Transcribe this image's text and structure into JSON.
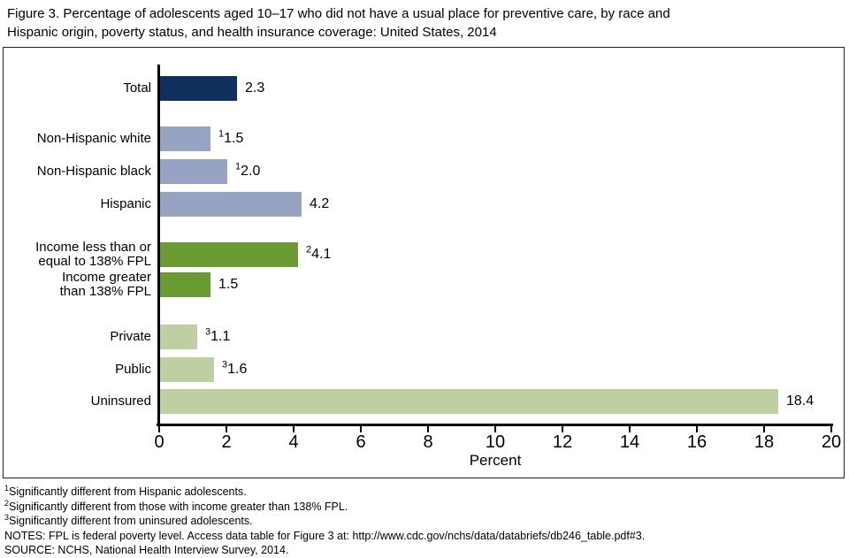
{
  "title": {
    "line1": "Figure 3. Percentage of adolescents aged 10–17 who did not have a usual place for preventive care, by race and",
    "line2": "Hispanic origin, poverty status, and health insurance coverage: United States, 2014"
  },
  "chart_data": {
    "type": "bar",
    "orientation": "horizontal",
    "title": "Figure 3. Percentage of adolescents aged 10–17 who did not have a usual place for preventive care, by race and Hispanic origin, poverty status, and health insurance coverage: United States, 2014",
    "xlabel": "Percent",
    "xlim": [
      0,
      20
    ],
    "xticks": [
      0,
      2,
      4,
      6,
      8,
      10,
      12,
      14,
      16,
      18,
      20
    ],
    "grid": false,
    "legend": "none",
    "colors": {
      "total": "#11305e",
      "race": "#97a3c3",
      "poverty": "#6a9b33",
      "insurance": "#bed0a1"
    },
    "bars": [
      {
        "label": "Total",
        "value": 2.3,
        "display": "2.3",
        "superscript": "",
        "group": "total"
      },
      {
        "label": "Non-Hispanic white",
        "value": 1.5,
        "display": "1.5",
        "superscript": "1",
        "group": "race"
      },
      {
        "label": "Non-Hispanic black",
        "value": 2.0,
        "display": "2.0",
        "superscript": "1",
        "group": "race"
      },
      {
        "label": "Hispanic",
        "value": 4.2,
        "display": "4.2",
        "superscript": "",
        "group": "race"
      },
      {
        "label": "Income less than or\nequal to 138% FPL",
        "value": 4.1,
        "display": "4.1",
        "superscript": "2",
        "group": "poverty"
      },
      {
        "label": "Income greater\nthan 138% FPL",
        "value": 1.5,
        "display": "1.5",
        "superscript": "",
        "group": "poverty"
      },
      {
        "label": "Private",
        "value": 1.1,
        "display": "1.1",
        "superscript": "3",
        "group": "insurance"
      },
      {
        "label": "Public",
        "value": 1.6,
        "display": "1.6",
        "superscript": "3",
        "group": "insurance"
      },
      {
        "label": "Uninsured",
        "value": 18.4,
        "display": "18.4",
        "superscript": "",
        "group": "insurance"
      }
    ]
  },
  "footnotes": [
    {
      "sup": "1",
      "text": "Significantly different from Hispanic adolescents."
    },
    {
      "sup": "2",
      "text": "Significantly different from those with income greater than 138% FPL."
    },
    {
      "sup": "3",
      "text": "Significantly different from uninsured adolescents."
    },
    {
      "sup": "",
      "text": "NOTES: FPL is federal poverty level. Access data table for Figure 3 at: http://www.cdc.gov/nchs/data/databriefs/db246_table.pdf#3."
    },
    {
      "sup": "",
      "text": "SOURCE: NCHS, National Health Interview Survey, 2014."
    }
  ]
}
